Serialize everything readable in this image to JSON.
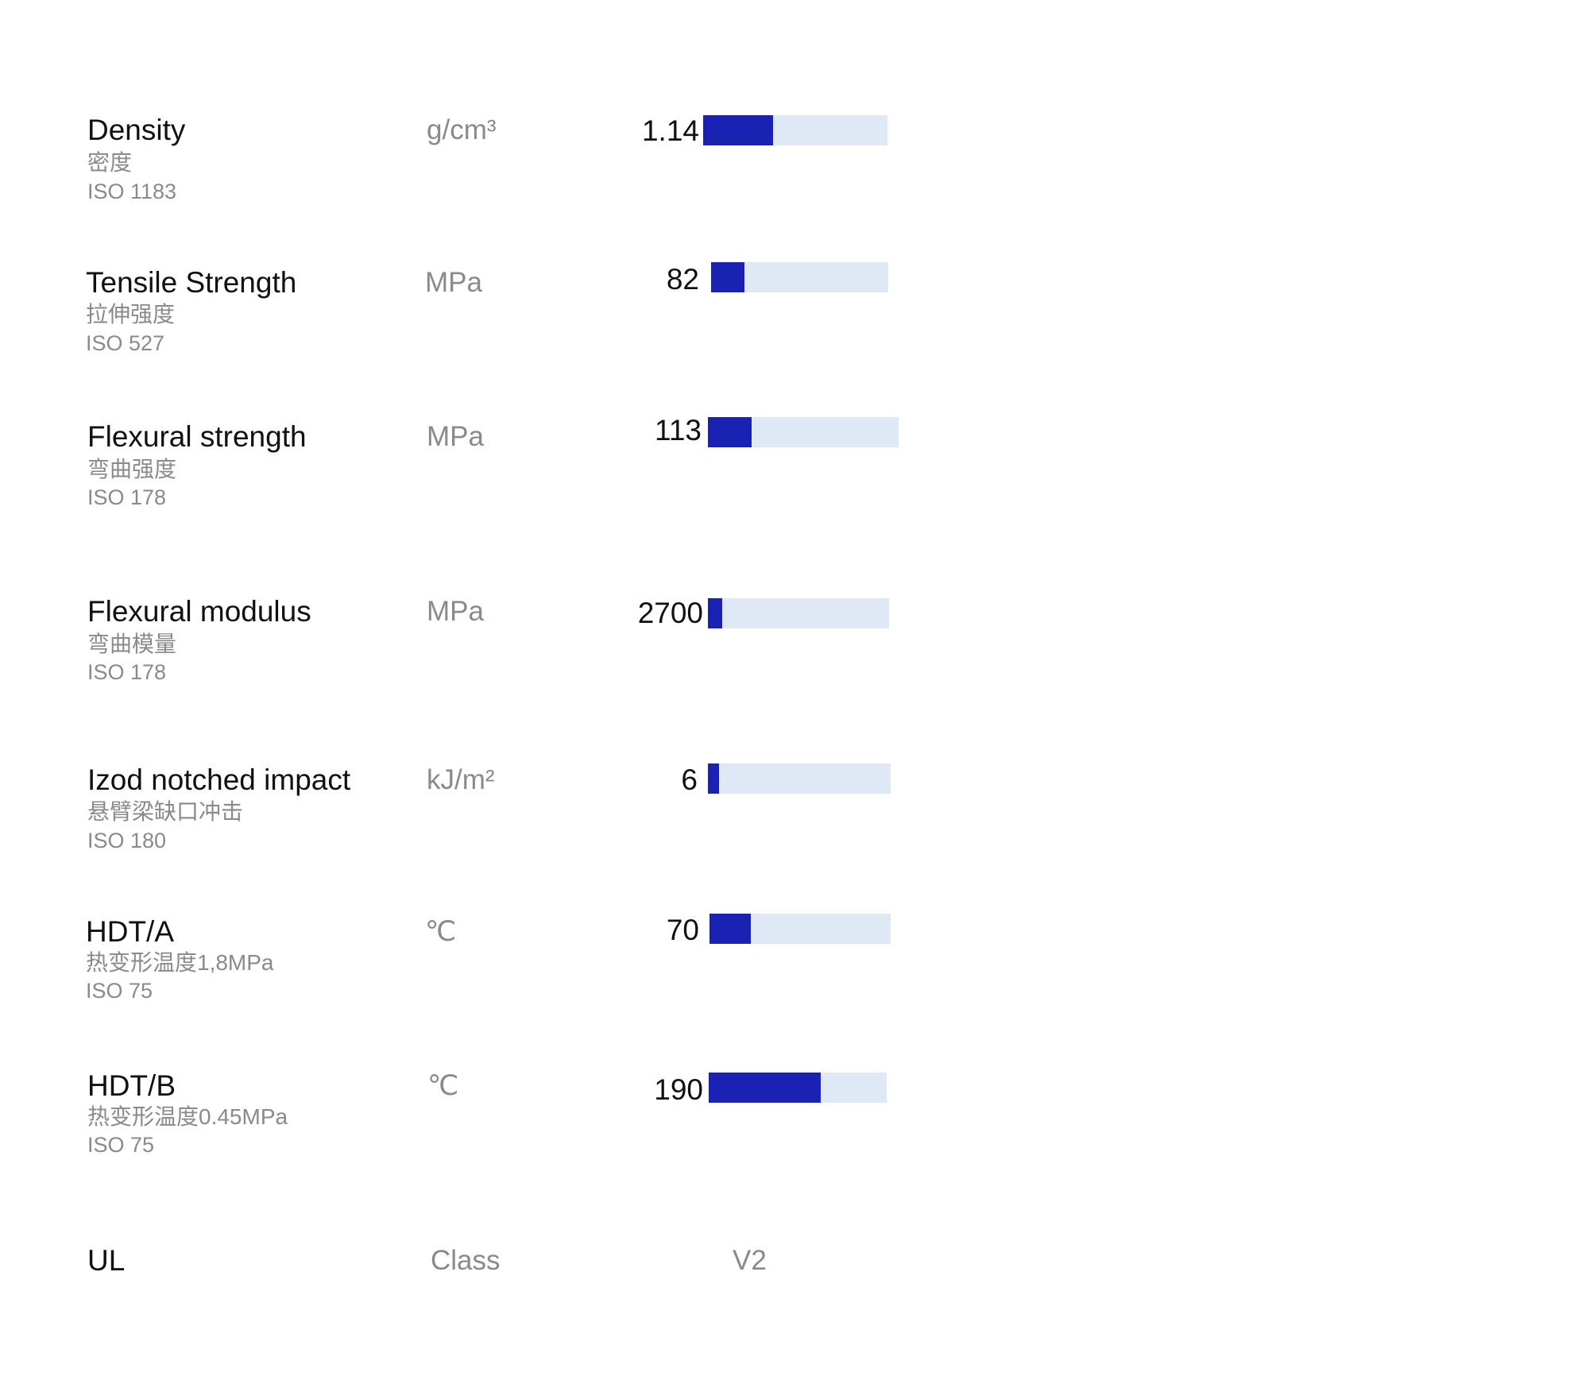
{
  "properties": [
    {
      "name": "Density",
      "name_cn": "密度",
      "standard": "ISO 1183",
      "unit": "g/cm³",
      "value": "1.14",
      "bar_fraction": 0.38
    },
    {
      "name": "Tensile Strength",
      "name_cn": "拉伸强度",
      "standard": "ISO 527",
      "unit": "MPa",
      "value": "82",
      "bar_fraction": 0.19
    },
    {
      "name": "Flexural strength",
      "name_cn": "弯曲强度",
      "standard": "ISO 178",
      "unit": "MPa",
      "value": "113",
      "bar_fraction": 0.23
    },
    {
      "name": "Flexural modulus",
      "name_cn": "弯曲模量",
      "standard": "ISO 178",
      "unit": "MPa",
      "value": "2700",
      "bar_fraction": 0.08
    },
    {
      "name": "Izod notched impact",
      "name_cn": "悬臂梁缺口冲击",
      "standard": "ISO 180",
      "unit": "kJ/m²",
      "value": "6",
      "bar_fraction": 0.06
    },
    {
      "name": "HDT/A",
      "name_cn": "热变形温度1,8MPa",
      "standard": "ISO 75",
      "unit": "℃",
      "value": "70",
      "bar_fraction": 0.23
    },
    {
      "name": "HDT/B",
      "name_cn": "热变形温度0.45MPa",
      "standard": "ISO 75",
      "unit": "℃",
      "value": "190",
      "bar_fraction": 0.63
    }
  ],
  "ul": {
    "name": "UL",
    "unit": "Class",
    "value": "V2"
  },
  "colors": {
    "bar_fill": "#1a22b4",
    "bar_track": "#dfe8f5"
  }
}
